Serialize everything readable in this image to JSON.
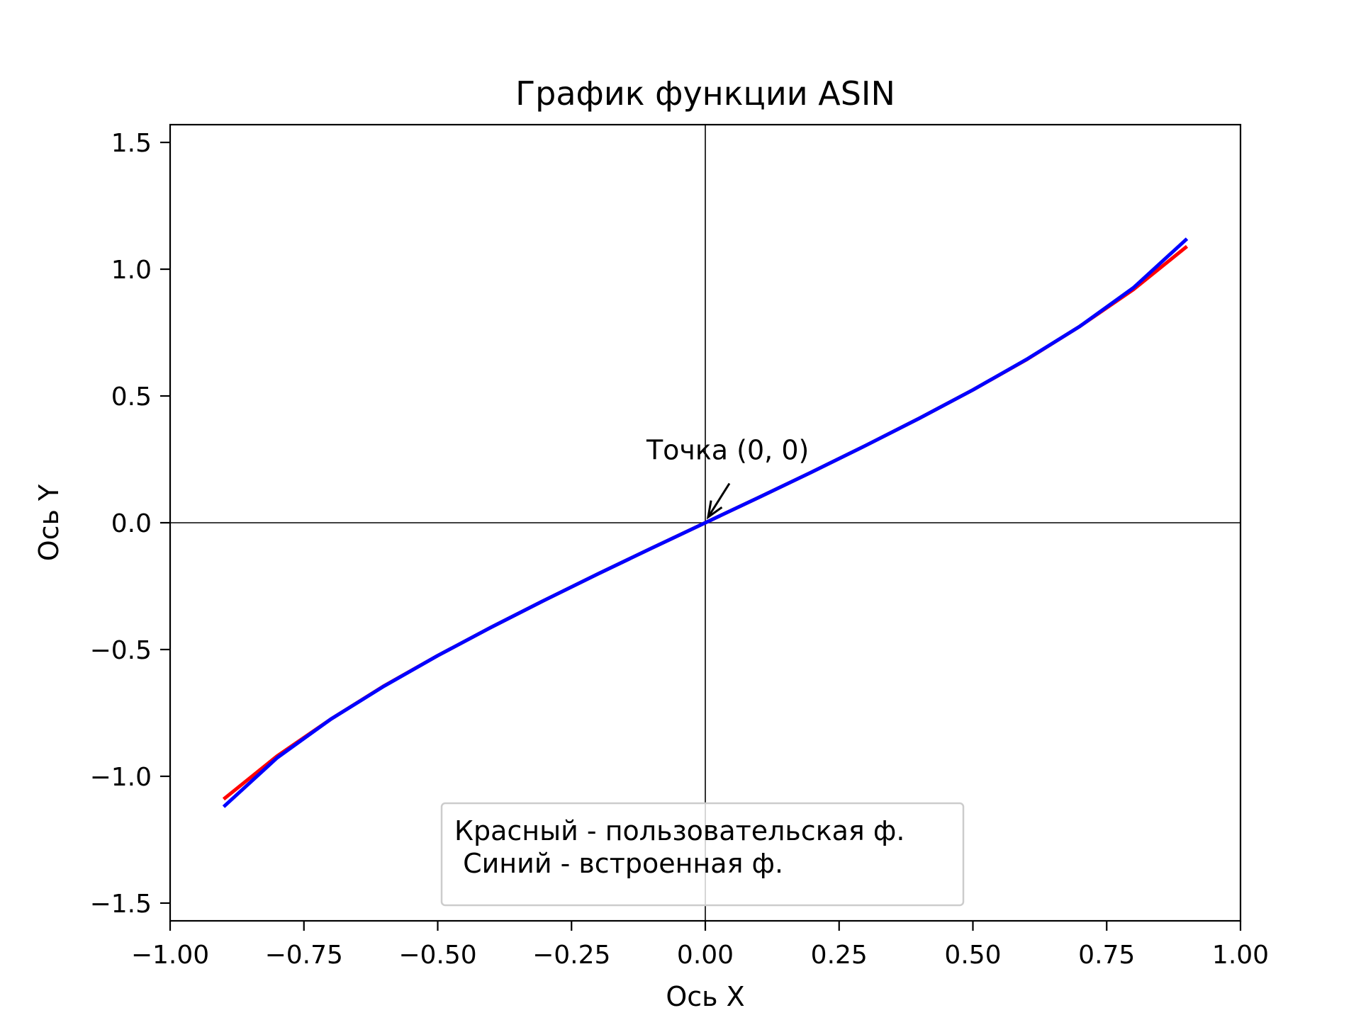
{
  "chart_data": {
    "type": "line",
    "title": "График функции ASIN",
    "xlabel": "Ось X",
    "ylabel": "Ось Y",
    "xlim": [
      -1.0,
      1.0
    ],
    "ylim": [
      -1.57,
      1.57
    ],
    "xticks": [
      -1.0,
      -0.75,
      -0.5,
      -0.25,
      0.0,
      0.25,
      0.5,
      0.75,
      1.0
    ],
    "xtick_labels": [
      "−1.00",
      "−0.75",
      "−0.50",
      "−0.25",
      "0.00",
      "0.25",
      "0.50",
      "0.75",
      "1.00"
    ],
    "yticks": [
      -1.5,
      -1.0,
      -0.5,
      0.0,
      0.5,
      1.0,
      1.5
    ],
    "ytick_labels": [
      "−1.5",
      "−1.0",
      "−0.5",
      "0.0",
      "0.5",
      "1.0",
      "1.5"
    ],
    "grid": false,
    "reference_lines": {
      "x": 0,
      "y": 0,
      "color": "#000000"
    },
    "x": [
      -0.9,
      -0.8,
      -0.7,
      -0.6,
      -0.5,
      -0.4,
      -0.3,
      -0.2,
      -0.1,
      0.0,
      0.1,
      0.2,
      0.3,
      0.4,
      0.5,
      0.6,
      0.7,
      0.8,
      0.9
    ],
    "series": [
      {
        "color": "#ff0000",
        "values": [
          -1.09,
          -0.92,
          -0.775,
          -0.643,
          -0.524,
          -0.412,
          -0.305,
          -0.201,
          -0.1,
          0.0,
          0.1,
          0.201,
          0.305,
          0.412,
          0.524,
          0.643,
          0.775,
          0.92,
          1.09
        ]
      },
      {
        "color": "#0000ff",
        "values": [
          -1.12,
          -0.927,
          -0.775,
          -0.644,
          -0.524,
          -0.412,
          -0.305,
          -0.201,
          -0.1,
          0.0,
          0.1,
          0.201,
          0.305,
          0.412,
          0.524,
          0.644,
          0.775,
          0.927,
          1.12
        ]
      }
    ],
    "legend": {
      "lines": [
        "Красный - пользовательская ф.",
        " Синий - встроенная ф."
      ],
      "placement": "lower center"
    },
    "annotation": {
      "text": "Точка (0, 0)",
      "point": [
        0,
        0
      ],
      "text_at": [
        -0.11,
        0.25
      ]
    }
  }
}
